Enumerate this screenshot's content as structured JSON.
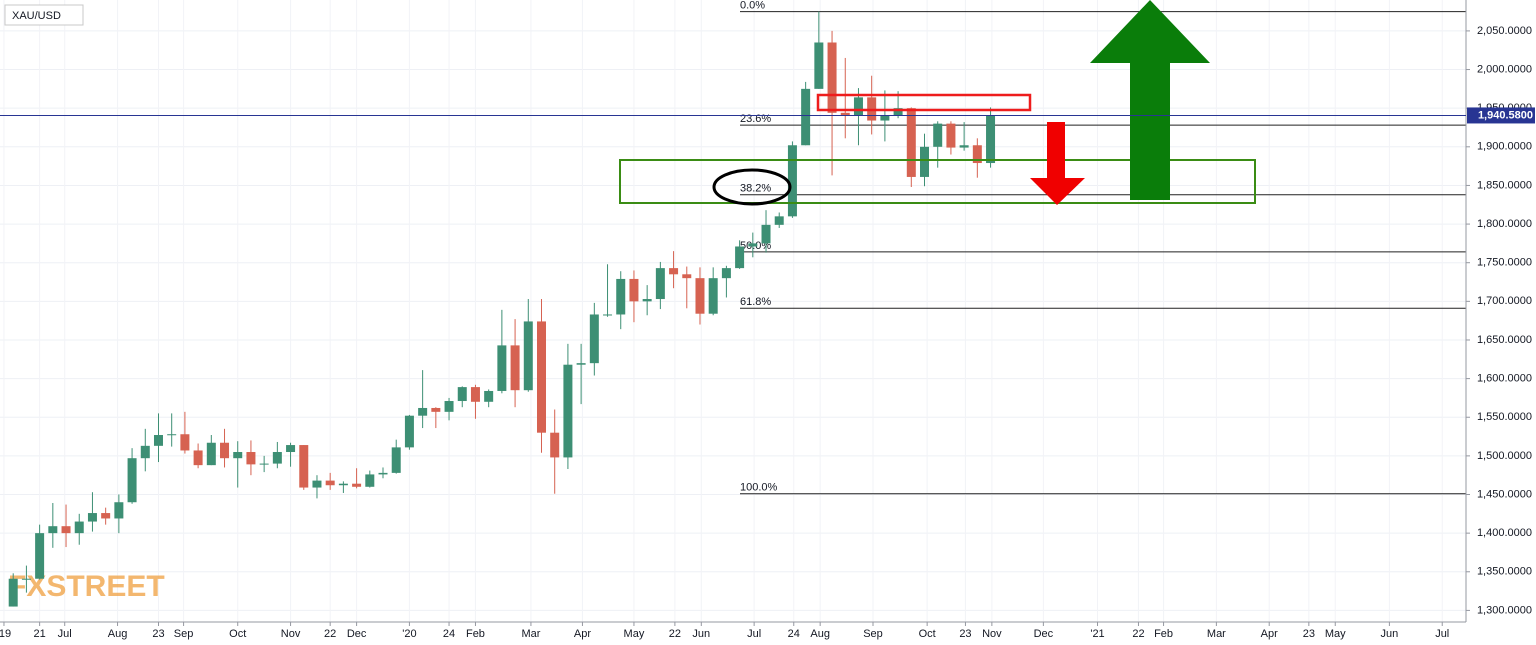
{
  "chart_data": {
    "type": "candlestick",
    "title": "XAU/USD",
    "watermark": "FXSTREET",
    "up_color": "#3d8f74",
    "down_color": "#d66251",
    "x": [
      0,
      1,
      2,
      3,
      4,
      5,
      6,
      7,
      8,
      9,
      10,
      11,
      12,
      13,
      14,
      15,
      16,
      17,
      18,
      19,
      20,
      21,
      22,
      23,
      24,
      25,
      26,
      27,
      28,
      29,
      30,
      31,
      32,
      33,
      34,
      35,
      36,
      37,
      38,
      39,
      40,
      41,
      42,
      43,
      44,
      45,
      46,
      47,
      48,
      49,
      50,
      51,
      52,
      53,
      54,
      55,
      56,
      57,
      58,
      59,
      60,
      61,
      62,
      63,
      64,
      65,
      66,
      67,
      68,
      69,
      70,
      71,
      72,
      73,
      74
    ],
    "open": [
      1305,
      1341,
      1341,
      1400,
      1409,
      1400,
      1415,
      1426,
      1419,
      1440,
      1497,
      1513,
      1527,
      1528,
      1507,
      1488,
      1517,
      1497,
      1505,
      1489,
      1490,
      1505,
      1514,
      1459,
      1468,
      1462,
      1464,
      1460,
      1476,
      1478,
      1511,
      1552,
      1562,
      1557,
      1571,
      1589,
      1570,
      1584,
      1643,
      1585,
      1674,
      1530,
      1498,
      1618,
      1620,
      1683,
      1683,
      1729,
      1700,
      1703,
      1743,
      1735,
      1730,
      1684,
      1730,
      1743,
      1771,
      1775,
      1799,
      1810,
      1902,
      1975,
      2035,
      1944,
      1940,
      1964,
      1934,
      1940,
      1950,
      1861,
      1900,
      1930,
      1899,
      1902,
      1879
    ],
    "high": [
      1348,
      1358,
      1411,
      1439,
      1437,
      1425,
      1453,
      1433,
      1450,
      1510,
      1535,
      1555,
      1555,
      1557,
      1516,
      1527,
      1535,
      1519,
      1520,
      1500,
      1518,
      1517,
      1514,
      1475,
      1478,
      1467,
      1484,
      1481,
      1485,
      1521,
      1553,
      1611,
      1563,
      1575,
      1590,
      1592,
      1586,
      1689,
      1677,
      1703,
      1703,
      1560,
      1645,
      1645,
      1698,
      1748,
      1739,
      1740,
      1721,
      1751,
      1765,
      1745,
      1744,
      1744,
      1746,
      1779,
      1789,
      1818,
      1815,
      1907,
      1984,
      2075,
      2050,
      2015,
      1976,
      1992,
      1973,
      1972,
      1951,
      1917,
      1933,
      1933,
      1932,
      1911,
      1951
    ],
    "low": [
      1305,
      1323,
      1340,
      1381,
      1382,
      1385,
      1402,
      1411,
      1400,
      1438,
      1480,
      1492,
      1512,
      1503,
      1484,
      1488,
      1485,
      1459,
      1475,
      1479,
      1484,
      1486,
      1456,
      1445,
      1456,
      1452,
      1458,
      1459,
      1471,
      1477,
      1508,
      1536,
      1536,
      1546,
      1563,
      1548,
      1563,
      1581,
      1563,
      1583,
      1504,
      1451,
      1483,
      1567,
      1604,
      1680,
      1664,
      1673,
      1682,
      1690,
      1717,
      1691,
      1670,
      1682,
      1705,
      1742,
      1757,
      1763,
      1795,
      1808,
      1902,
      1975,
      1863,
      1911,
      1902,
      1916,
      1907,
      1937,
      1848,
      1849,
      1873,
      1890,
      1895,
      1860,
      1873
    ],
    "close": [
      1341,
      1341,
      1400,
      1409,
      1400,
      1415,
      1426,
      1419,
      1440,
      1497,
      1513,
      1527,
      1528,
      1507,
      1488,
      1517,
      1497,
      1505,
      1489,
      1490,
      1505,
      1514,
      1459,
      1468,
      1462,
      1464,
      1460,
      1476,
      1478,
      1511,
      1552,
      1562,
      1557,
      1571,
      1589,
      1570,
      1584,
      1643,
      1585,
      1674,
      1530,
      1498,
      1618,
      1620,
      1683,
      1683,
      1729,
      1700,
      1703,
      1743,
      1735,
      1730,
      1684,
      1730,
      1743,
      1771,
      1775,
      1799,
      1810,
      1902,
      1975,
      2035,
      1944,
      1940,
      1964,
      1934,
      1940,
      1950,
      1861,
      1900,
      1930,
      1899,
      1902,
      1879,
      1940.58
    ],
    "xlim": [
      -1,
      110
    ],
    "xticks": [
      {
        "value": -0.7,
        "label": "'19"
      },
      {
        "value": 2,
        "label": "21"
      },
      {
        "value": 3.9,
        "label": "Jul"
      },
      {
        "value": 7.9,
        "label": "Aug"
      },
      {
        "value": 11,
        "label": "23"
      },
      {
        "value": 12.9,
        "label": "Sep"
      },
      {
        "value": 17,
        "label": "Oct"
      },
      {
        "value": 21,
        "label": "Nov"
      },
      {
        "value": 24,
        "label": "22"
      },
      {
        "value": 26,
        "label": "Dec"
      },
      {
        "value": 30,
        "label": "'20"
      },
      {
        "value": 33,
        "label": "24"
      },
      {
        "value": 35,
        "label": "Feb"
      },
      {
        "value": 39.2,
        "label": "Mar"
      },
      {
        "value": 43.1,
        "label": "Apr"
      },
      {
        "value": 47,
        "label": "May"
      },
      {
        "value": 50.1,
        "label": "22"
      },
      {
        "value": 52.1,
        "label": "Jun"
      },
      {
        "value": 56.1,
        "label": "Jul"
      },
      {
        "value": 59.1,
        "label": "24"
      },
      {
        "value": 61.1,
        "label": "Aug"
      },
      {
        "value": 65.1,
        "label": "Sep"
      },
      {
        "value": 69.2,
        "label": "Oct"
      },
      {
        "value": 72.1,
        "label": "23"
      },
      {
        "value": 74.1,
        "label": "Nov"
      },
      {
        "value": 78,
        "label": "Dec"
      },
      {
        "value": 82.1,
        "label": "'21"
      },
      {
        "value": 85.2,
        "label": "22"
      },
      {
        "value": 87.1,
        "label": "Feb"
      },
      {
        "value": 91.1,
        "label": "Mar"
      },
      {
        "value": 95.1,
        "label": "Apr"
      },
      {
        "value": 98.1,
        "label": "23"
      },
      {
        "value": 100.1,
        "label": "May"
      },
      {
        "value": 104.2,
        "label": "Jun"
      },
      {
        "value": 108.2,
        "label": "Jul"
      }
    ],
    "ylim": [
      1285,
      2090
    ],
    "yticks": [
      {
        "value": 1300,
        "label": "1,300.0000"
      },
      {
        "value": 1350,
        "label": "1,350.0000"
      },
      {
        "value": 1400,
        "label": "1,400.0000"
      },
      {
        "value": 1450,
        "label": "1,450.0000"
      },
      {
        "value": 1500,
        "label": "1,500.0000"
      },
      {
        "value": 1550,
        "label": "1,550.0000"
      },
      {
        "value": 1600,
        "label": "1,600.0000"
      },
      {
        "value": 1650,
        "label": "1,650.0000"
      },
      {
        "value": 1700,
        "label": "1,700.0000"
      },
      {
        "value": 1750,
        "label": "1,750.0000"
      },
      {
        "value": 1800,
        "label": "1,800.0000"
      },
      {
        "value": 1850,
        "label": "1,850.0000"
      },
      {
        "value": 1900,
        "label": "1,900.0000"
      },
      {
        "value": 1950,
        "label": "1,950.0000"
      },
      {
        "value": 2000,
        "label": "2,000.0000"
      },
      {
        "value": 2050,
        "label": "2,050.0000"
      }
    ],
    "grid": true,
    "last_price": {
      "value": 1940.58,
      "label": "1,940.5800",
      "color": "#283593"
    },
    "fib_levels": [
      {
        "label": "0.0%",
        "value": 2075
      },
      {
        "label": "23.6%",
        "value": 1928
      },
      {
        "label": "38.2%",
        "value": 1838
      },
      {
        "label": "50.0%",
        "value": 1764
      },
      {
        "label": "61.8%",
        "value": 1691
      },
      {
        "label": "100.0%",
        "value": 1451
      }
    ]
  }
}
